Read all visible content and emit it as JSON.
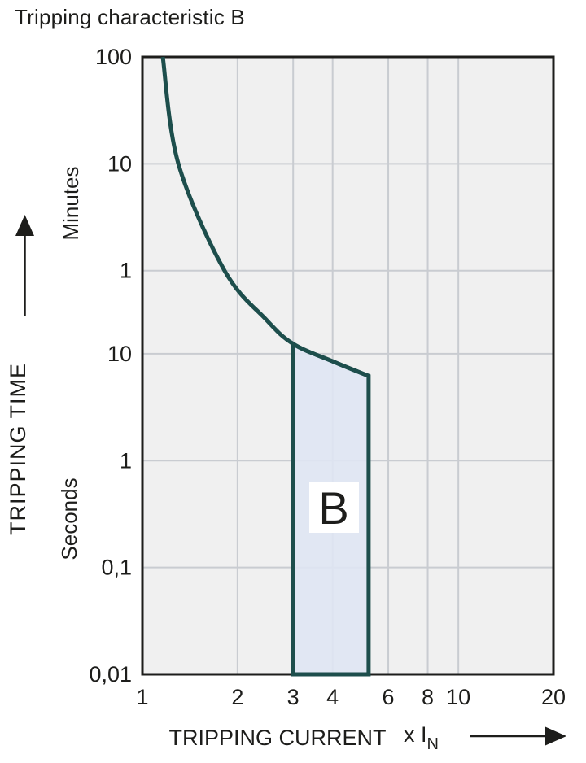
{
  "page": {
    "title": "Tripping characteristic B"
  },
  "colors": {
    "curve": "#1d4e4c",
    "region_fill": "#dfe5f3",
    "plot_background": "#f0f0f0",
    "gridline": "#c9ccd1",
    "border": "#1d1d1b",
    "text": "#1d1d1b",
    "label_box": "#ffffff"
  },
  "chart_data": {
    "type": "line",
    "title": "Tripping characteristic B",
    "grid": true,
    "legend": "none",
    "x_axis": {
      "title": "TRIPPING CURRENT",
      "unit_prefix": "x I",
      "unit_sub": "N",
      "scale": "log",
      "range": [
        1,
        20
      ],
      "tick_values": [
        1,
        2,
        3,
        4,
        6,
        8,
        10,
        20
      ],
      "tick_labels": [
        "1",
        "2",
        "3",
        "4",
        "6",
        "8",
        "10",
        "20"
      ],
      "gridline_values": [
        2,
        3,
        4,
        6,
        8,
        10
      ]
    },
    "y_axis": {
      "title": "TRIPPING TIME",
      "unit_upper": "Minutes",
      "unit_lower": "Seconds",
      "scale": "log",
      "range_seconds": [
        0.01,
        6000
      ],
      "ticks": [
        {
          "seconds": 6000,
          "label": "100"
        },
        {
          "seconds": 600,
          "label": "10"
        },
        {
          "seconds": 60,
          "label": "1"
        },
        {
          "seconds": 10,
          "label": "10"
        },
        {
          "seconds": 1,
          "label": "1"
        },
        {
          "seconds": 0.1,
          "label": "0,1"
        },
        {
          "seconds": 0.01,
          "label": "0,01"
        }
      ],
      "gridline_seconds": [
        600,
        60,
        10,
        1,
        0.1
      ]
    },
    "series": [
      {
        "name": "tripping-curve",
        "points_x_in_vs_t_seconds": [
          [
            1.16,
            6000
          ],
          [
            1.3,
            600
          ],
          [
            1.82,
            60
          ],
          [
            2.46,
            21
          ],
          [
            3.0,
            12.4
          ],
          [
            4.0,
            8.5
          ],
          [
            5.2,
            6.2
          ]
        ],
        "drops_vertically_to_seconds": 0.01
      }
    ],
    "b_region": {
      "label": "B",
      "x_min": 3.0,
      "x_max": 5.2,
      "t_min_seconds": 0.01,
      "top_boundary": "tripping-curve"
    }
  }
}
